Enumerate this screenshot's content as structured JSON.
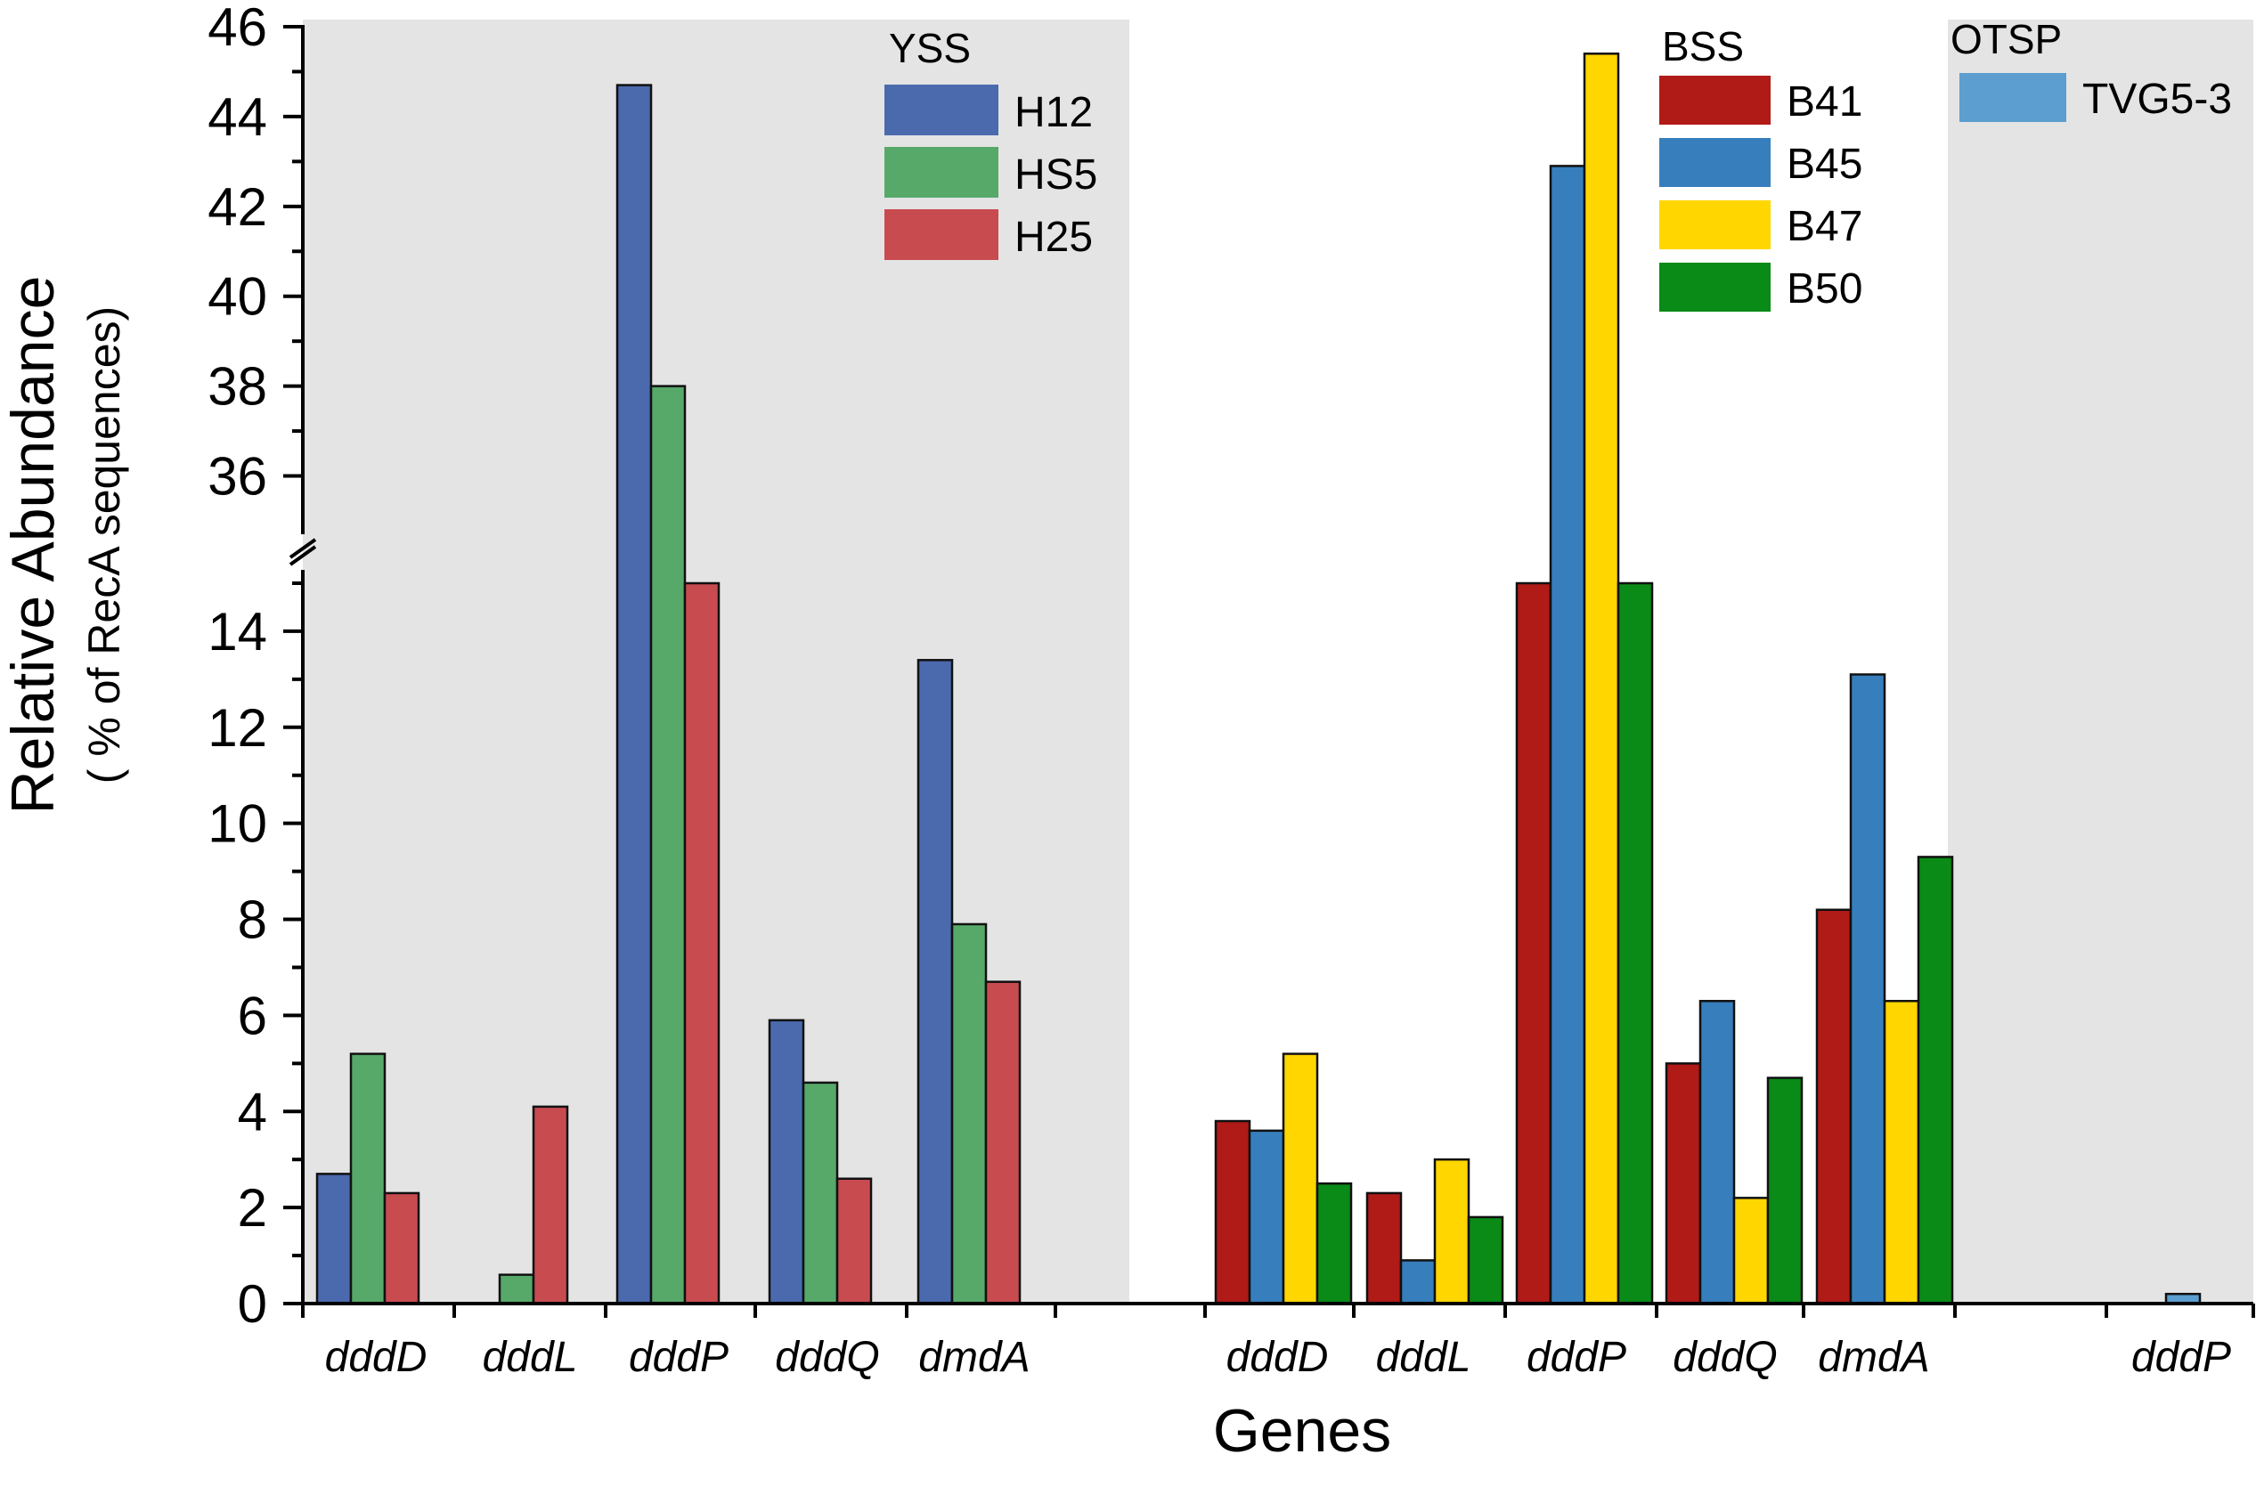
{
  "chart_data": {
    "type": "bar",
    "xlabel": "Genes",
    "ylabel": "Relative Abundance",
    "ylabel_sub": "( % of RecA sequences)",
    "axis_break": {
      "lower_range": [
        0,
        15
      ],
      "upper_range": [
        35,
        46
      ]
    },
    "lower_ticks": [
      "0",
      "2",
      "4",
      "6",
      "8",
      "10",
      "12",
      "14"
    ],
    "upper_ticks": [
      "36",
      "38",
      "40",
      "42",
      "44",
      "46"
    ],
    "groups": [
      {
        "name": "YSS",
        "shaded": true,
        "categories": [
          "dddD",
          "dddL",
          "dddP",
          "dddQ",
          "dmdA"
        ],
        "series": [
          {
            "name": "H12",
            "color": "#4a6aad",
            "values": [
              2.7,
              0,
              44.7,
              5.9,
              13.4
            ]
          },
          {
            "name": "HS5",
            "color": "#57a96a",
            "values": [
              5.2,
              0.6,
              38.0,
              4.6,
              7.9
            ]
          },
          {
            "name": "H25",
            "color": "#c84b50",
            "values": [
              2.3,
              4.1,
              15.0,
              2.6,
              6.7
            ]
          }
        ]
      },
      {
        "name": "BSS",
        "shaded": false,
        "categories": [
          "dddD",
          "dddL",
          "dddP",
          "dddQ",
          "dmdA"
        ],
        "series": [
          {
            "name": "B41",
            "color": "#b01a17",
            "values": [
              3.8,
              2.3,
              15.0,
              5.0,
              8.2
            ]
          },
          {
            "name": "B45",
            "color": "#377ebc",
            "values": [
              3.6,
              0.9,
              42.9,
              6.3,
              13.1
            ]
          },
          {
            "name": "B47",
            "color": "#ffd600",
            "values": [
              5.2,
              3.0,
              45.4,
              2.2,
              6.3
            ]
          },
          {
            "name": "B50",
            "color": "#0a8a16",
            "values": [
              2.5,
              1.8,
              15.0,
              4.7,
              9.3
            ]
          }
        ]
      },
      {
        "name": "OTSP",
        "shaded": true,
        "categories": [
          "dddP"
        ],
        "series": [
          {
            "name": "TVG5-3",
            "color": "#5b9ecf",
            "values": [
              0.2
            ]
          }
        ]
      }
    ]
  }
}
